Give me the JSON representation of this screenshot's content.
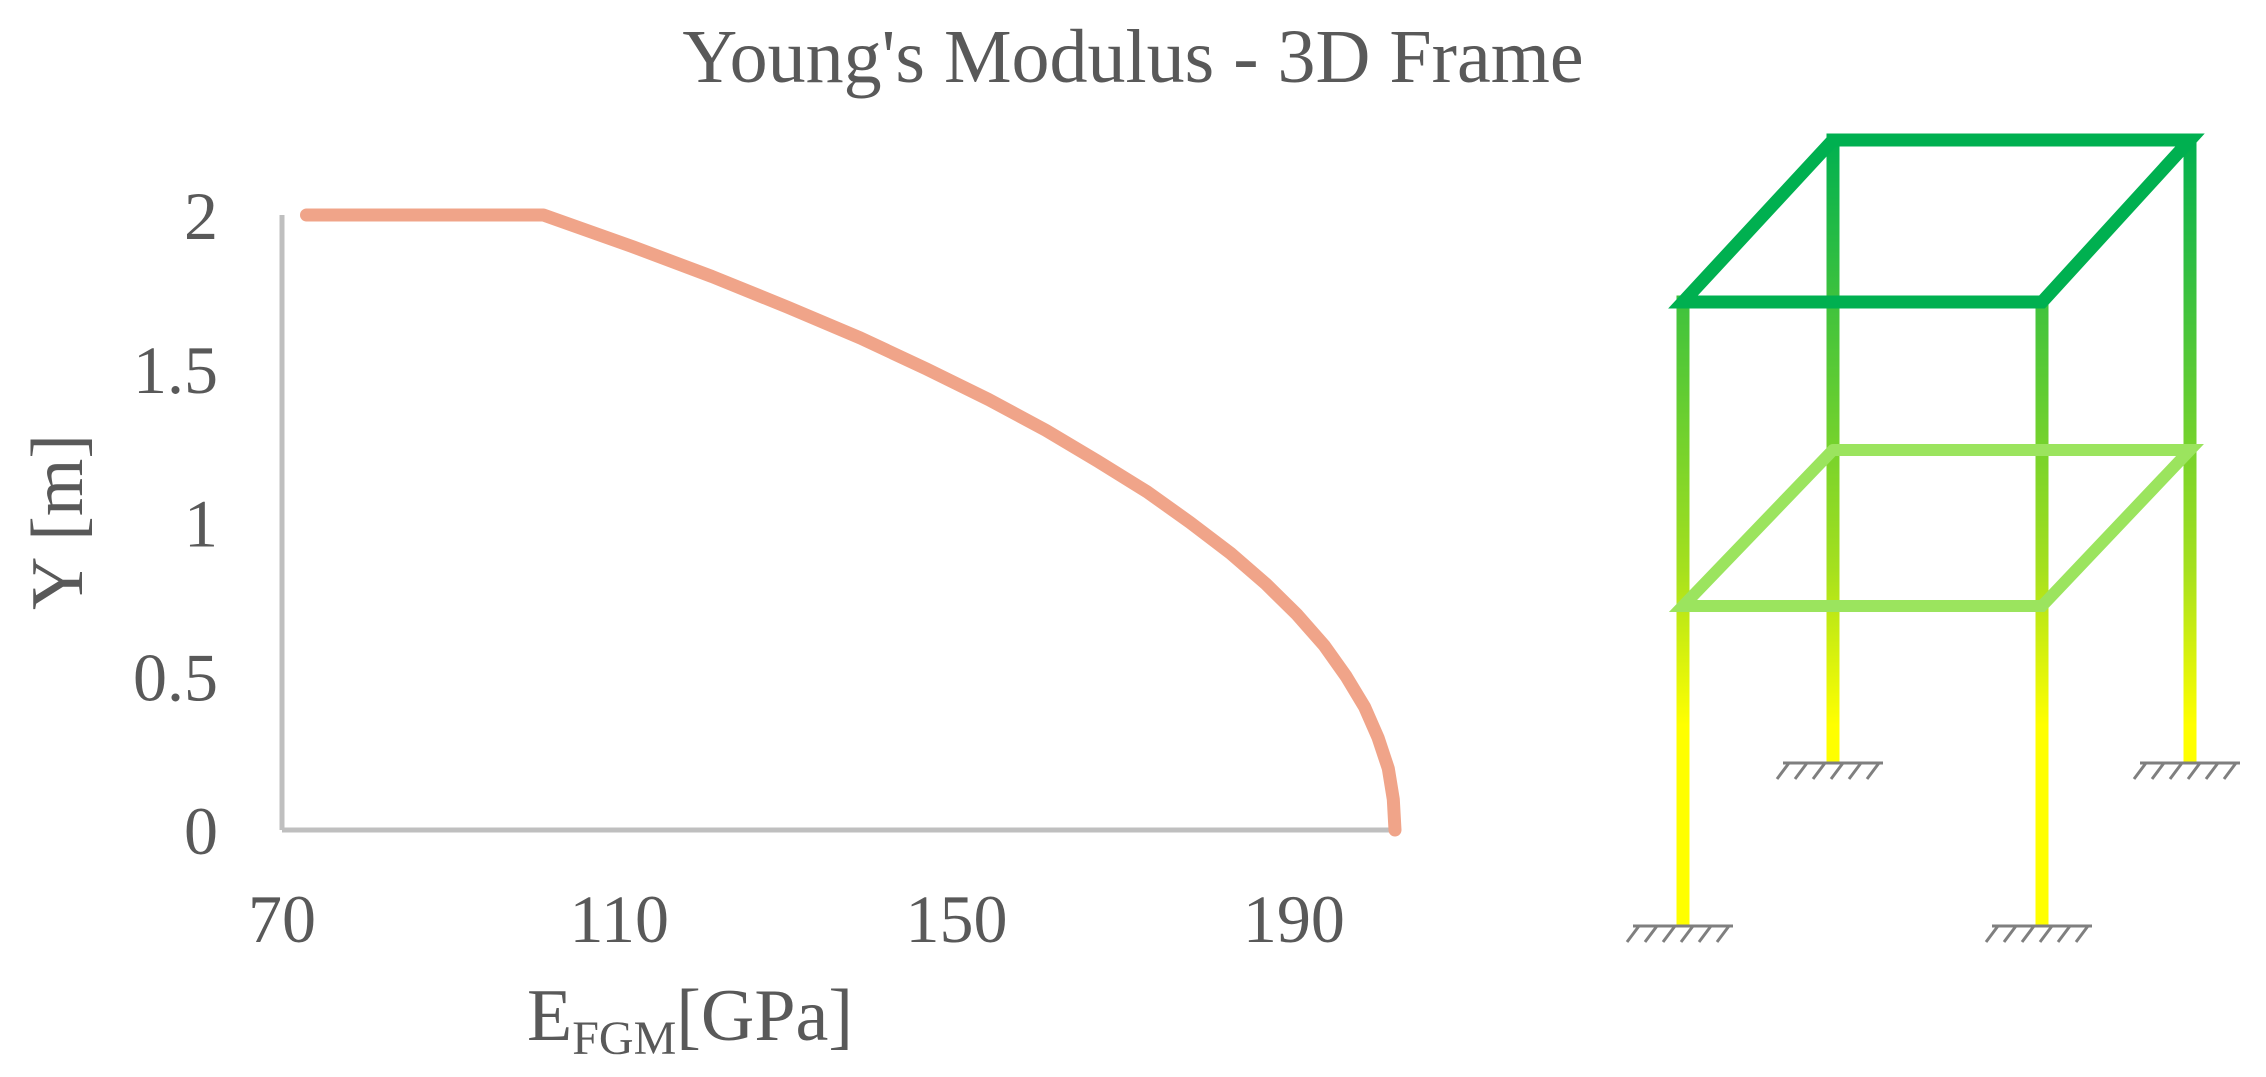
{
  "chart_data": {
    "type": "line",
    "title": "Young's Modulus - 3D Frame",
    "xlabel": {
      "main": "E",
      "sub": "FGM",
      "unit": "[GPa]"
    },
    "ylabel": "Y [m]",
    "xlim": [
      70,
      202
    ],
    "ylim": [
      0,
      2
    ],
    "xticks": [
      "70",
      "110",
      "150",
      "190"
    ],
    "yticks": [
      "0",
      "0.5",
      "1",
      "1.5",
      "2"
    ],
    "grid": false,
    "series": [
      {
        "color": "#F0A489",
        "x": [
          202,
          201.8,
          201.2,
          200.0,
          198.4,
          196.2,
          193.6,
          190.4,
          186.7,
          182.5,
          177.7,
          172.6,
          166.7,
          160.6,
          153.8,
          146.4,
          138.6,
          130.0,
          121.0,
          111.3,
          101.0,
          90.2,
          79.1,
          72.9
        ],
        "y": [
          0.0,
          0.1,
          0.2,
          0.3,
          0.4,
          0.5,
          0.6,
          0.7,
          0.8,
          0.9,
          1.0,
          1.1,
          1.2,
          1.3,
          1.4,
          1.5,
          1.6,
          1.7,
          1.8,
          1.9,
          2.0,
          2.1,
          2.2,
          2.0
        ]
      }
    ]
  },
  "frame_panel": {
    "colors": {
      "top": "#00B050",
      "bottom": "#FFFF00",
      "mid_beam": "#9BE45E",
      "support": "#7F7F7F"
    }
  }
}
